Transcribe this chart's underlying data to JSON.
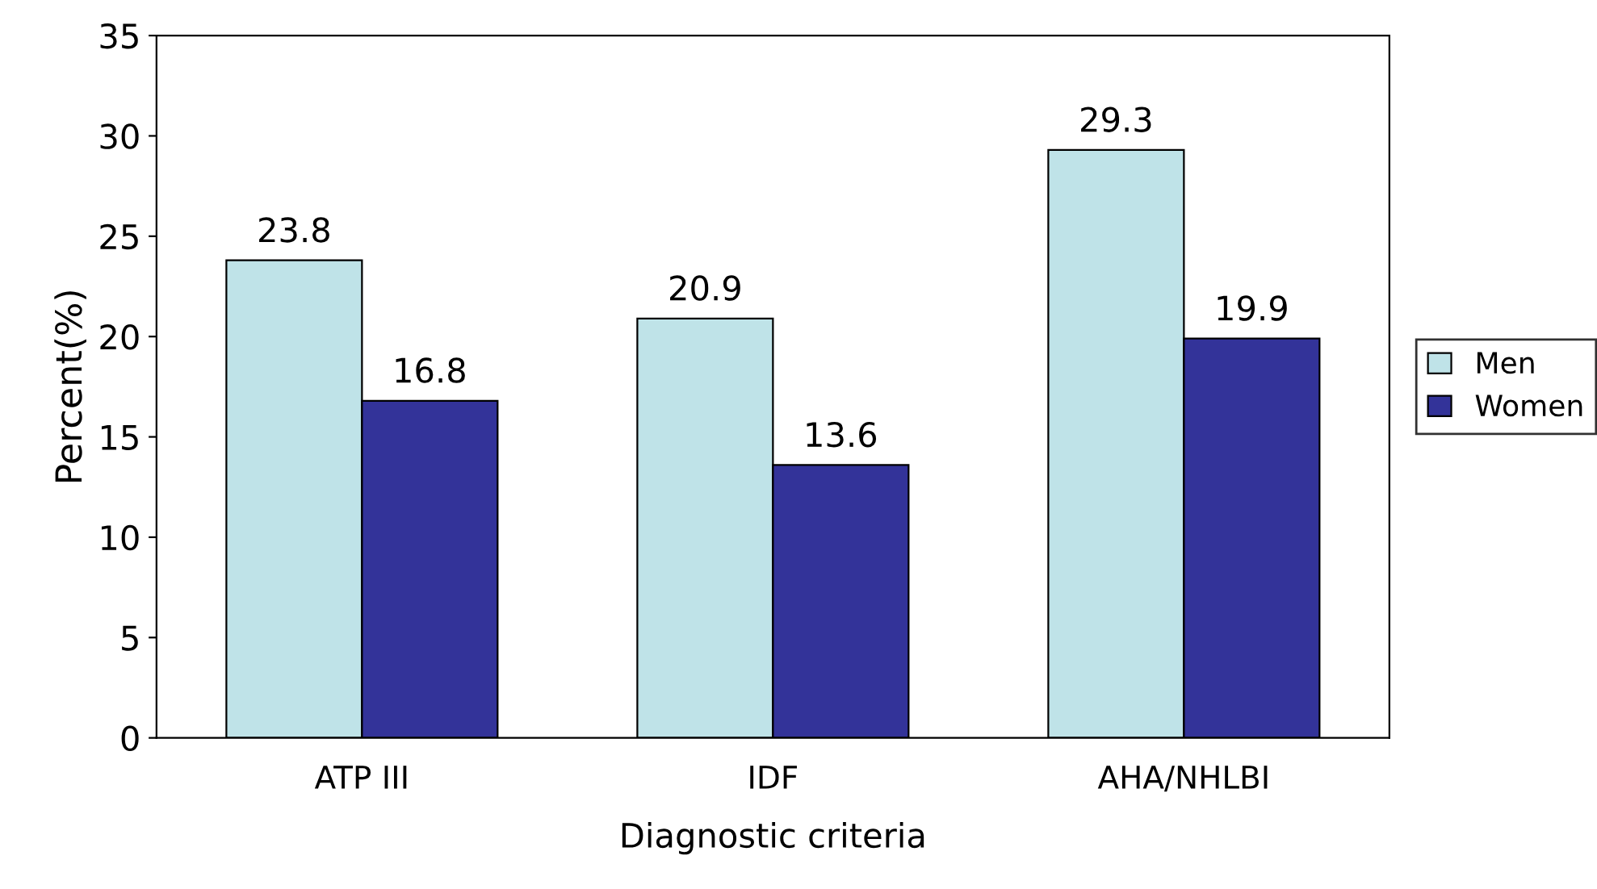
{
  "chart_data": {
    "type": "bar",
    "xlabel": "Diagnostic criteria",
    "ylabel": "Percent(%)",
    "categories": [
      "ATP III",
      "IDF",
      "AHA/NHLBI"
    ],
    "series": [
      {
        "name": "Men",
        "color": "#bfe3e8",
        "values": [
          23.8,
          20.9,
          29.3
        ]
      },
      {
        "name": "Women",
        "color": "#333399",
        "values": [
          16.8,
          13.6,
          19.9
        ]
      }
    ],
    "ylim": [
      0,
      35
    ],
    "yticks": [
      0,
      5,
      10,
      15,
      20,
      25,
      30,
      35
    ],
    "grid": false,
    "legend": "right",
    "data_labels": true
  }
}
